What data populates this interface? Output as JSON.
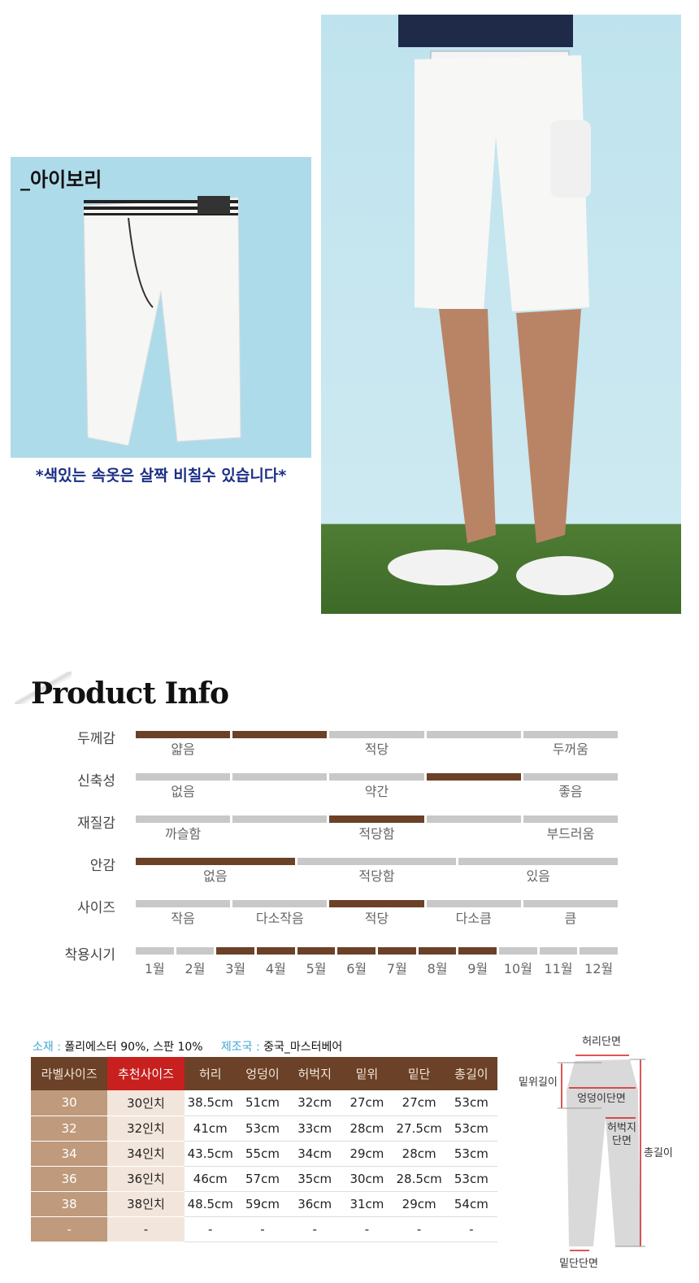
{
  "color_panel": {
    "color_name": "_아이보리",
    "notice": "*색있는 속옷은 살짝 비칠수 있습니다*"
  },
  "product_info": {
    "title": "Product Info",
    "rows": [
      {
        "label": "두께감",
        "segments": 5,
        "active": [
          0,
          1
        ],
        "labels": [
          "얇음",
          "",
          "적당",
          "",
          "두꺼움"
        ]
      },
      {
        "label": "신축성",
        "segments": 5,
        "active": [
          3
        ],
        "labels": [
          "없음",
          "",
          "약간",
          "",
          "좋음"
        ]
      },
      {
        "label": "재질감",
        "segments": 5,
        "active": [
          2
        ],
        "labels": [
          "까슬함",
          "",
          "적당함",
          "",
          "부드러움"
        ]
      },
      {
        "label": "안감",
        "segments": 3,
        "active": [
          0
        ],
        "labels": [
          "없음",
          "적당함",
          "있음"
        ]
      },
      {
        "label": "사이즈",
        "segments": 5,
        "active": [
          2
        ],
        "labels": [
          "작음",
          "다소작음",
          "적당",
          "다소큼",
          "큼"
        ]
      },
      {
        "label": "착용시기",
        "segments": 12,
        "active": [
          2,
          3,
          4,
          5,
          6,
          7,
          8
        ],
        "labels": [
          "1월",
          "2월",
          "3월",
          "4월",
          "5월",
          "6월",
          "7월",
          "8월",
          "9월",
          "10월",
          "11월",
          "12월"
        ]
      }
    ]
  },
  "materials": {
    "material_key": "소재 :",
    "material_value": "폴리에스터 90%,  스판 10%",
    "origin_key": "제조국 :",
    "origin_value": "중국_마스터베어"
  },
  "size_table": {
    "headers": [
      "라벨사이즈",
      "추천사이즈",
      "허리",
      "엉덩이",
      "허벅지",
      "밑위",
      "밑단",
      "총길이"
    ],
    "rows": [
      [
        "30",
        "30인치",
        "38.5cm",
        "51cm",
        "32cm",
        "27cm",
        "27cm",
        "53cm"
      ],
      [
        "32",
        "32인치",
        "41cm",
        "53cm",
        "33cm",
        "28cm",
        "27.5cm",
        "53cm"
      ],
      [
        "34",
        "34인치",
        "43.5cm",
        "55cm",
        "34cm",
        "29cm",
        "28cm",
        "53cm"
      ],
      [
        "36",
        "36인치",
        "46cm",
        "57cm",
        "35cm",
        "30cm",
        "28.5cm",
        "53cm"
      ],
      [
        "38",
        "38인치",
        "48.5cm",
        "59cm",
        "36cm",
        "31cm",
        "29cm",
        "54cm"
      ],
      [
        "-",
        "-",
        "-",
        "-",
        "-",
        "-",
        "-",
        "-"
      ]
    ]
  },
  "diagram": {
    "waist": "허리단면",
    "rise": "밑위길이",
    "hip": "엉덩이단면",
    "thigh_1": "허벅지",
    "thigh_2": "단면",
    "length": "총길이",
    "hem": "밑단단면"
  },
  "colors": {
    "brown": "#6b4127",
    "red": "#c8201e",
    "blue_text": "#3fa6d6",
    "notice_blue": "#1b2f86"
  }
}
